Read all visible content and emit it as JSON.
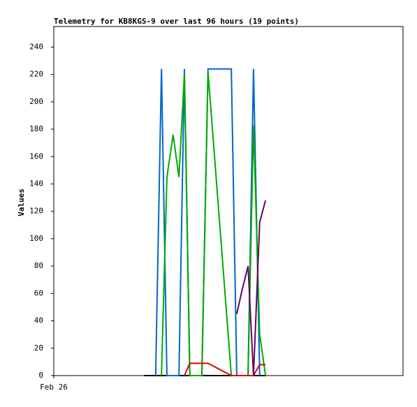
{
  "chart_data": {
    "type": "line",
    "title": "Telemetry for KB8KGS-9 over last 96 hours (19 points)",
    "y_label": "Values",
    "x": [
      24.8,
      26.3,
      28.0,
      29.6,
      31.1,
      32.8,
      34.4,
      35.9,
      37.4,
      39.2,
      40.7,
      42.4,
      48.8,
      50.3,
      51.8,
      53.4,
      54.9,
      56.6,
      58.2
    ],
    "xlim": [
      0,
      96
    ],
    "xticks": [
      {
        "value": 0,
        "label": "Feb 26"
      }
    ],
    "ylim": [
      0,
      255
    ],
    "yticks": [
      0,
      20,
      40,
      60,
      80,
      100,
      120,
      140,
      160,
      180,
      200,
      220,
      240
    ],
    "series": [
      {
        "color": "#000000",
        "values": [
          0,
          0,
          0,
          0,
          0,
          0,
          0,
          0,
          0,
          0,
          0,
          0,
          0,
          0,
          0,
          0,
          0,
          0,
          0
        ]
      },
      {
        "color": "#0066cc",
        "values": [
          null,
          null,
          0,
          224,
          0,
          0,
          0,
          224,
          0,
          0,
          0,
          224,
          224,
          0,
          0,
          0,
          224,
          0,
          null
        ]
      },
      {
        "color": "#00aa00",
        "values": [
          null,
          null,
          null,
          0,
          145,
          176,
          145,
          220,
          0,
          0,
          0,
          222,
          0,
          0,
          0,
          0,
          183,
          30,
          0
        ]
      },
      {
        "color": "#dd0000",
        "values": [
          null,
          null,
          null,
          null,
          null,
          null,
          null,
          0,
          9,
          9,
          9,
          9,
          0,
          0,
          0,
          0,
          0,
          8,
          8
        ]
      },
      {
        "color": "#660066",
        "values": [
          null,
          null,
          null,
          null,
          null,
          null,
          null,
          null,
          null,
          null,
          null,
          null,
          null,
          45,
          63,
          80,
          0,
          112,
          128
        ]
      }
    ]
  }
}
